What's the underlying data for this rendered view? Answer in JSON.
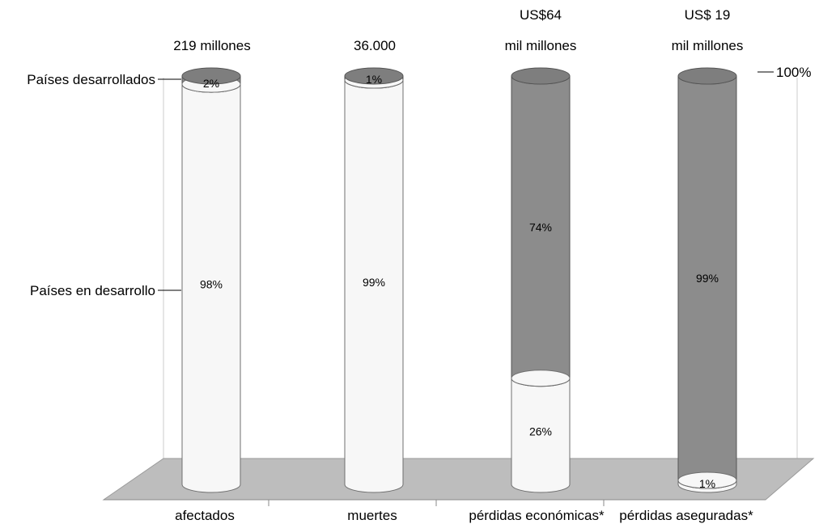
{
  "chart_data": {
    "type": "bar",
    "style": "3d-stacked-cylinder-100-percent",
    "categories": [
      "afectados",
      "muertes",
      "pérdidas económicas*",
      "pérdidas aseguradas*"
    ],
    "totals": [
      [
        "219 millones"
      ],
      [
        "36.000"
      ],
      [
        "US$64",
        "mil millones"
      ],
      [
        "US$ 19",
        "mil millones"
      ]
    ],
    "series": [
      {
        "name": "Países en desarrollo",
        "values": [
          98,
          99,
          26,
          1
        ],
        "labels": [
          "98%",
          "99%",
          "26%",
          "1%"
        ],
        "color": "#f7f7f7"
      },
      {
        "name": "Países desarrollados",
        "values": [
          2,
          1,
          74,
          99
        ],
        "labels": [
          "2%",
          "1%",
          "74%",
          "99%"
        ],
        "color": "#8c8c8c"
      }
    ],
    "top_marker": "100%",
    "ylim": [
      0,
      100
    ],
    "floor_color": "#bdbdbd",
    "grid": false
  }
}
